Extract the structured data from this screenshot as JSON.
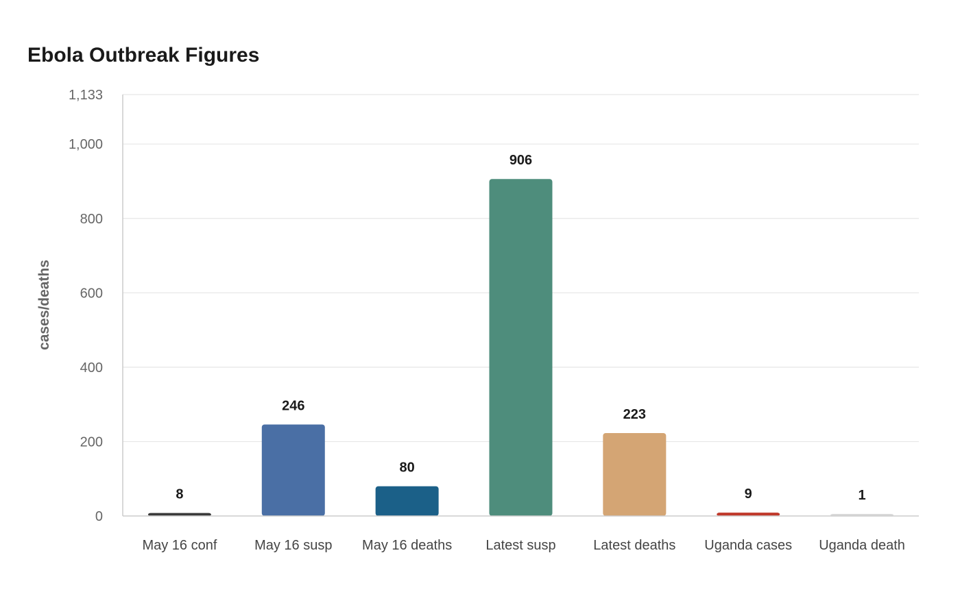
{
  "chart_data": {
    "type": "bar",
    "title": "Ebola Outbreak Figures",
    "xlabel": "",
    "ylabel": "cases/deaths",
    "categories": [
      "May 16 conf",
      "May 16 susp",
      "May 16 deaths",
      "Latest susp",
      "Latest deaths",
      "Uganda cases",
      "Uganda death"
    ],
    "values": [
      8,
      246,
      80,
      906,
      223,
      9,
      1
    ],
    "data_labels": [
      "8",
      "246",
      "80",
      "906",
      "223",
      "9",
      "1"
    ],
    "colors": [
      "#3a3a3a",
      "#4a6fa5",
      "#1b6088",
      "#4e8d7c",
      "#d4a574",
      "#c0392b",
      "#d9d9d9"
    ],
    "ylim": [
      0,
      1133
    ],
    "yticks": [
      0,
      200,
      400,
      600,
      800,
      1000,
      1133
    ],
    "ytick_labels": [
      "0",
      "200",
      "400",
      "600",
      "800",
      "1,000",
      "1,133"
    ],
    "grid": true,
    "legend": "none"
  }
}
